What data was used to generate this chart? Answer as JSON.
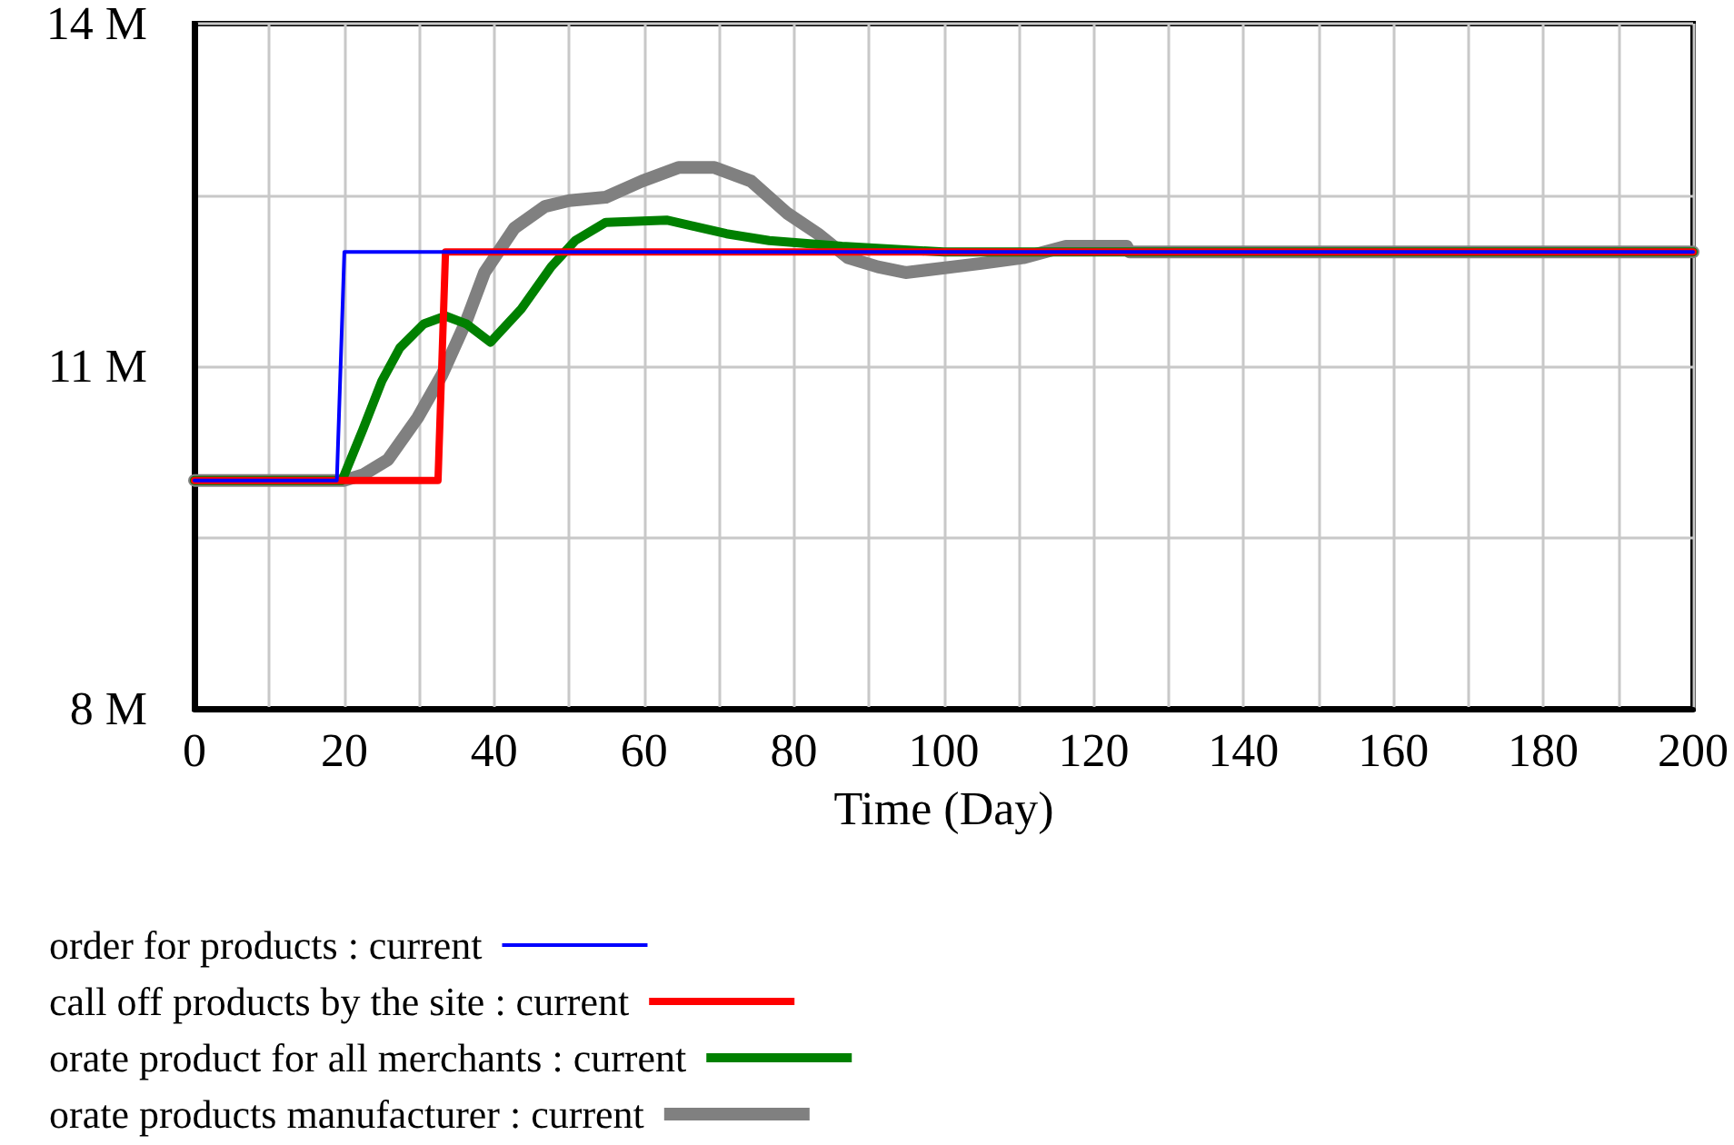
{
  "chart_data": {
    "type": "line",
    "xlabel": "Time (Day)",
    "xlim": [
      0,
      200
    ],
    "xticks": [
      0,
      {
        "value": 10,
        "label": null
      },
      20,
      {
        "value": 30,
        "label": null
      },
      40,
      {
        "value": 50,
        "label": null
      },
      60,
      {
        "value": 70,
        "label": null
      },
      80,
      {
        "value": 90,
        "label": null
      },
      100,
      {
        "value": 110,
        "label": null
      },
      120,
      {
        "value": 130,
        "label": null
      },
      140,
      {
        "value": 150,
        "label": null
      },
      160,
      {
        "value": 170,
        "label": null
      },
      180,
      {
        "value": 190,
        "label": null
      },
      200
    ],
    "ylim": [
      8,
      14
    ],
    "yticks": [
      {
        "value": 8,
        "label": "8 M"
      },
      {
        "value": 9.5,
        "label": null
      },
      {
        "value": 11,
        "label": "11 M"
      },
      {
        "value": 12.5,
        "label": null
      },
      {
        "value": 14,
        "label": "14 M"
      }
    ],
    "grid": true,
    "legend": "bottom",
    "marker": "none",
    "line_style": "solid",
    "series": [
      {
        "name": "order for products : current",
        "color": "#0000ff",
        "x": [
          0,
          19,
          20,
          200
        ],
        "values": [
          10.0,
          10.0,
          12.0,
          12.0
        ]
      },
      {
        "name": "call off products by the site : current",
        "color": "#ff0000",
        "x": [
          0,
          32.5,
          33.5,
          200
        ],
        "values": [
          10.0,
          10.0,
          12.0,
          12.0
        ]
      },
      {
        "name": "orate product for all merchants : current",
        "color": "#008000",
        "x": [
          0,
          19.7,
          22.5,
          25,
          27.4,
          30.6,
          33.5,
          36.3,
          39.5,
          43.6,
          47.6,
          50.8,
          54.9,
          63,
          71,
          76.7,
          86.4,
          100,
          200
        ],
        "values": [
          10.0,
          10.0,
          10.45,
          10.87,
          11.16,
          11.37,
          11.44,
          11.37,
          11.21,
          11.5,
          11.87,
          12.1,
          12.26,
          12.28,
          12.16,
          12.1,
          12.05,
          12.0,
          12.0
        ]
      },
      {
        "name": "orate products manufacturer : current",
        "color": "#808080",
        "x": [
          0,
          20,
          22.5,
          25.8,
          29.8,
          33,
          36.3,
          38.7,
          42.7,
          46.8,
          50,
          54.9,
          59.7,
          64.6,
          69.4,
          74.3,
          79.1,
          83.2,
          87.2,
          91.2,
          94.9,
          105,
          110.6,
          116.3,
          124.4,
          124.8,
          200
        ],
        "values": [
          10.0,
          10.0,
          10.05,
          10.18,
          10.55,
          10.92,
          11.4,
          11.82,
          12.21,
          12.4,
          12.45,
          12.48,
          12.62,
          12.74,
          12.74,
          12.62,
          12.34,
          12.16,
          11.95,
          11.87,
          11.82,
          11.9,
          11.95,
          12.05,
          12.05,
          12.0,
          12.0
        ]
      }
    ]
  }
}
